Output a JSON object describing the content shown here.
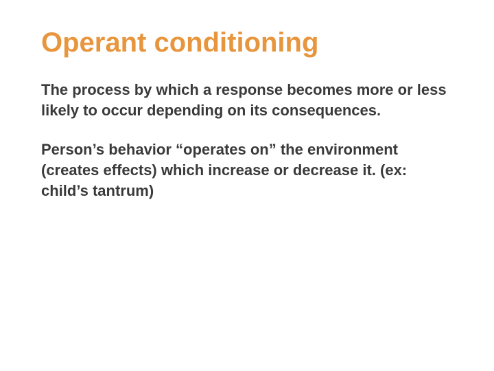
{
  "slide": {
    "title": {
      "text": "Operant conditioning",
      "color": "#e8963e",
      "fontsize": 40
    },
    "paragraphs": [
      {
        "text": "The process by which a response becomes more or less likely to occur depending on its consequences.",
        "color": "#3a3a3a",
        "fontsize": 22
      },
      {
        "text": "Person’s behavior “operates on” the environment (creates effects) which increase or decrease it. (ex: child’s tantrum)",
        "color": "#3a3a3a",
        "fontsize": 22
      }
    ],
    "background_color": "#ffffff"
  }
}
